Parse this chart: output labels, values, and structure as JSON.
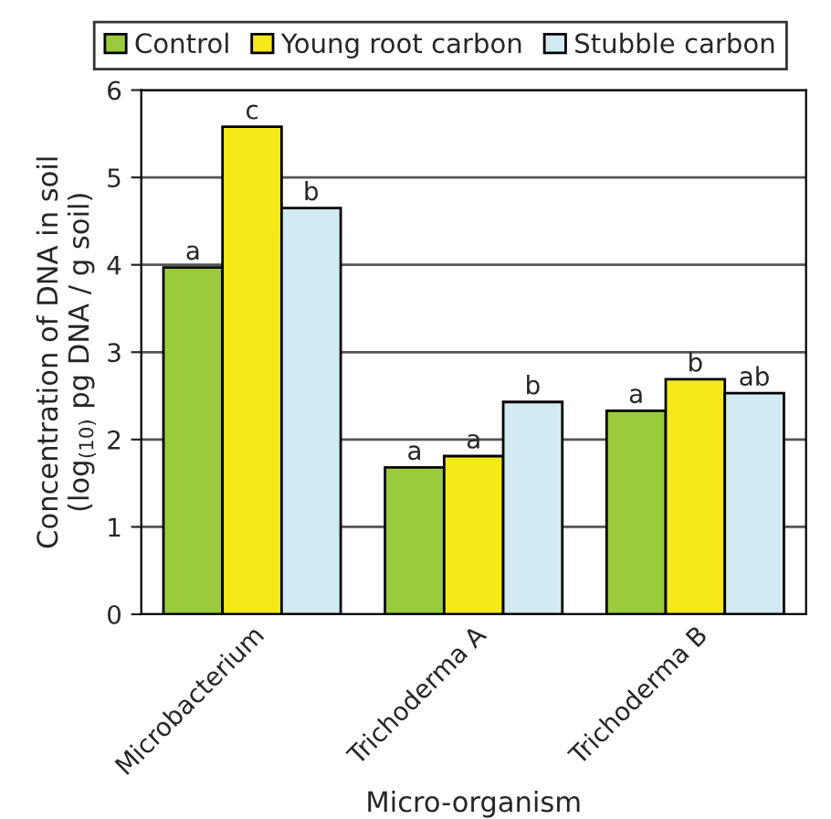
{
  "chart_data": {
    "type": "bar",
    "xlabel": "Micro-organism",
    "ylabel": "Concentration of DNA in soil\n(log$_{(10)}$ pg DNA / g soil)",
    "categories": [
      "Microbacterium",
      "Trichoderma A",
      "Trichoderma B"
    ],
    "series": [
      {
        "name": "Control",
        "color": "#9acb3c",
        "values": [
          3.97,
          1.68,
          2.33
        ],
        "value_labels": [
          "a",
          "a",
          "a"
        ]
      },
      {
        "name": "Young root carbon",
        "color": "#f5e91a",
        "values": [
          5.58,
          1.81,
          2.69
        ],
        "value_labels": [
          "c",
          "a",
          "b"
        ]
      },
      {
        "name": "Stubble carbon",
        "color": "#d2ebf2",
        "values": [
          4.65,
          2.43,
          2.53
        ],
        "value_labels": [
          "b",
          "b",
          "ab"
        ]
      }
    ],
    "ylim": [
      0,
      6
    ],
    "yticks": [
      0,
      1,
      2,
      3,
      4,
      5,
      6
    ],
    "grid": "y",
    "legend": "top"
  }
}
